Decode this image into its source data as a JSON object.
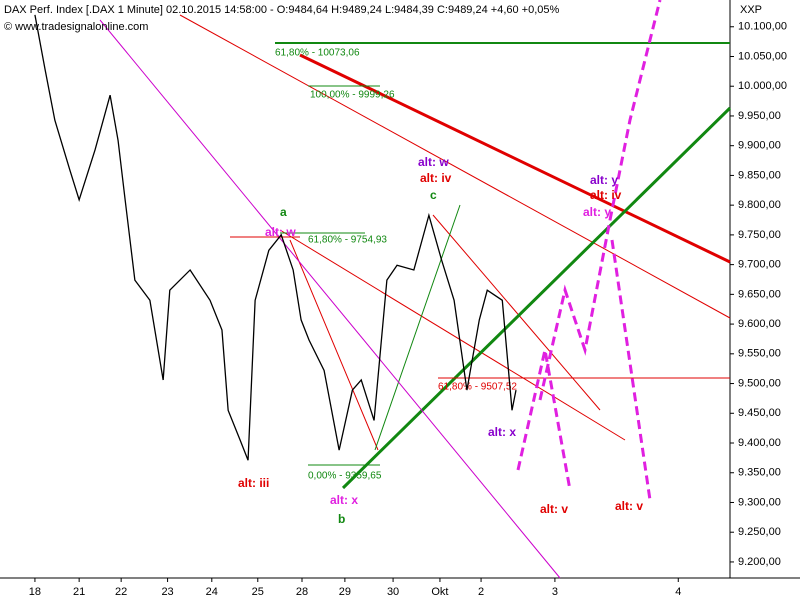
{
  "chart_data": {
    "type": "line",
    "title": "DAX Perf. Index [.DAX  1 Minute] 02.10.2015 14:58:00 - O:9484,64 H:9489,24 L:9484,39 C:9489,24 +4,60 +0,05%",
    "subtitle": "© www.tradesignalonline.com",
    "y_axis_label": "XXP",
    "series": [
      {
        "name": "DAX Perf. Index",
        "color": "#000000",
        "x": [
          0,
          0.23,
          0.45,
          0.79,
          1,
          1.36,
          1.7,
          1.88,
          2.04,
          2.26,
          2.6,
          2.9,
          3.05,
          3.51,
          3.96,
          4.23,
          4.37,
          4.64,
          4.82,
          4.98,
          5.29,
          5.57,
          5.84,
          6.02,
          6.2,
          6.54,
          6.88,
          7.18,
          7.38,
          7.67,
          7.96,
          8.19,
          8.57,
          8.91,
          9.2,
          9.48,
          9.77,
          10.05,
          10.23,
          10.57,
          10.79,
          10.88
        ],
        "values": [
          10120,
          10028,
          9943,
          9859,
          9809,
          9893,
          9985,
          9909,
          9809,
          9674,
          9640,
          9506,
          9657,
          9691,
          9640,
          9590,
          9455,
          9405,
          9371,
          9640,
          9724,
          9750,
          9691,
          9607,
          9573,
          9522,
          9388,
          9489,
          9506,
          9438,
          9674,
          9699,
          9691,
          9783,
          9707,
          9640,
          9489,
          9607,
          9657,
          9640,
          9455,
          9489
        ]
      }
    ],
    "xlim": [
      -0.79,
      15.72
    ],
    "xticks": [
      {
        "value": 0,
        "label": "18"
      },
      {
        "value": 1,
        "label": "21"
      },
      {
        "value": 1.95,
        "label": "22"
      },
      {
        "value": 3,
        "label": "23"
      },
      {
        "value": 4,
        "label": "24"
      },
      {
        "value": 5.04,
        "label": "25"
      },
      {
        "value": 6.04,
        "label": "28"
      },
      {
        "value": 7.01,
        "label": "29"
      },
      {
        "value": 8.1,
        "label": "30"
      },
      {
        "value": 9.16,
        "label": "Okt"
      },
      {
        "value": 10.09,
        "label": "2"
      },
      {
        "value": 11.76,
        "label": "3"
      },
      {
        "value": 14.55,
        "label": "4"
      }
    ],
    "ylim": [
      9173,
      10145
    ],
    "yticks": [
      {
        "value": 9200,
        "label": "9.200,00"
      },
      {
        "value": 9250,
        "label": "9.250,00"
      },
      {
        "value": 9300,
        "label": "9.300,00"
      },
      {
        "value": 9350,
        "label": "9.350,00"
      },
      {
        "value": 9400,
        "label": "9.400,00"
      },
      {
        "value": 9450,
        "label": "9.450,00"
      },
      {
        "value": 9500,
        "label": "9.500,00"
      },
      {
        "value": 9550,
        "label": "9.550,00"
      },
      {
        "value": 9600,
        "label": "9.600,00"
      },
      {
        "value": 9650,
        "label": "9.650,00"
      },
      {
        "value": 9700,
        "label": "9.700,00"
      },
      {
        "value": 9750,
        "label": "9.750,00"
      },
      {
        "value": 9800,
        "label": "9.800,00"
      },
      {
        "value": 9850,
        "label": "9.850,00"
      },
      {
        "value": 9900,
        "label": "9.900,00"
      },
      {
        "value": 9950,
        "label": "9.950,00"
      },
      {
        "value": 10000,
        "label": "10.000,00"
      },
      {
        "value": 10050,
        "label": "10.050,00"
      },
      {
        "value": 10100,
        "label": "10.100,00"
      }
    ],
    "annotations": [
      "61,80% - 10073,06",
      "100,00% - 9999,26",
      "61,80% - 9754,93",
      "0,00% - 9359,65",
      "61,80% - 9507,52",
      "alt: w",
      "alt: iv",
      "c",
      "a",
      "alt: w",
      "alt: iii",
      "alt: x",
      "b",
      "alt: x",
      "alt: v",
      "alt: v",
      "alt: y",
      "alt: iv",
      "alt: y"
    ]
  }
}
